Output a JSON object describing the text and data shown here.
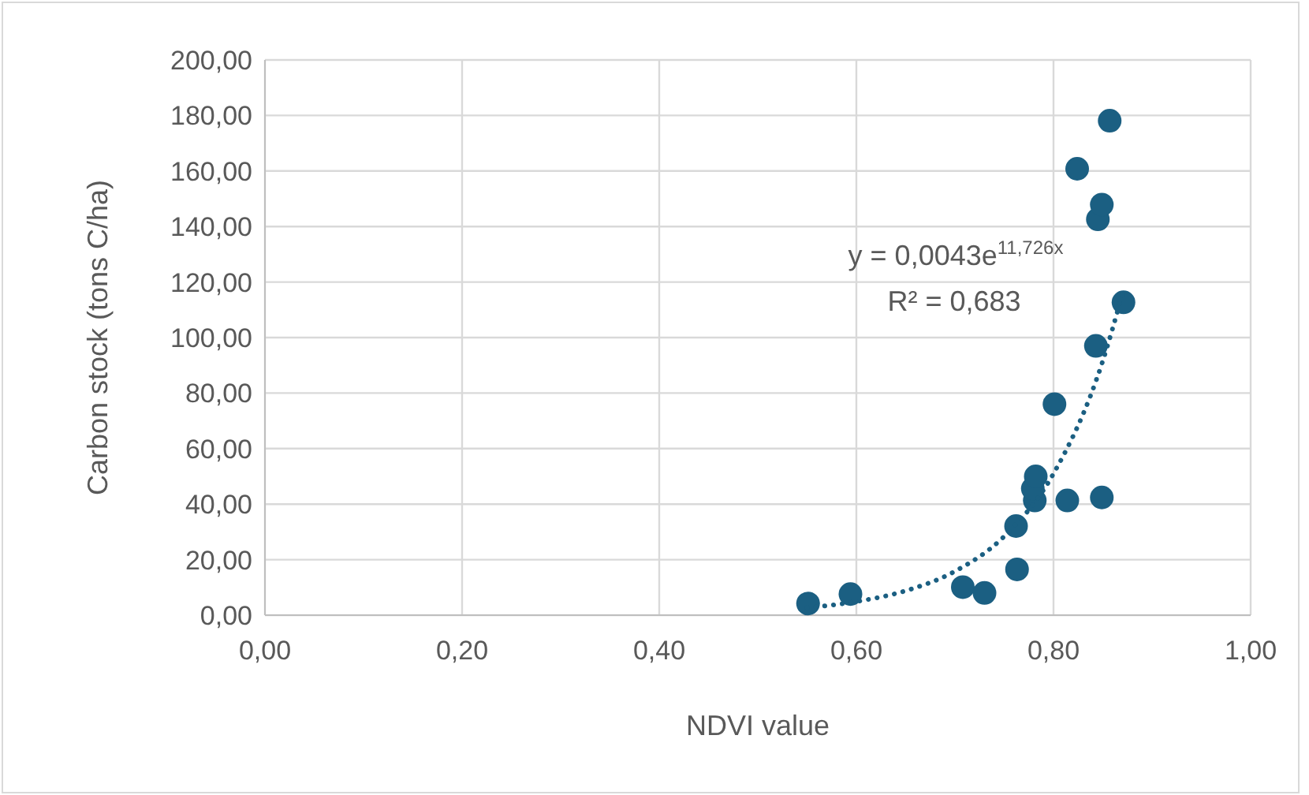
{
  "chart_data": {
    "type": "scatter",
    "xlabel": "NDVI value",
    "ylabel": "Carbon stock (tons C/ha)",
    "xlim": [
      0,
      1
    ],
    "ylim": [
      0,
      200
    ],
    "xticks": [
      {
        "value": 0,
        "label": "0,00"
      },
      {
        "value": 0.2,
        "label": "0,20"
      },
      {
        "value": 0.4,
        "label": "0,40"
      },
      {
        "value": 0.6,
        "label": "0,60"
      },
      {
        "value": 0.8,
        "label": "0,80"
      },
      {
        "value": 1,
        "label": "1,00"
      }
    ],
    "yticks": [
      {
        "value": 0,
        "label": "0,00"
      },
      {
        "value": 20,
        "label": "20,00"
      },
      {
        "value": 40,
        "label": "40,00"
      },
      {
        "value": 60,
        "label": "60,00"
      },
      {
        "value": 80,
        "label": "80,00"
      },
      {
        "value": 100,
        "label": "100,00"
      },
      {
        "value": 120,
        "label": "120,00"
      },
      {
        "value": 140,
        "label": "140,00"
      },
      {
        "value": 160,
        "label": "160,00"
      },
      {
        "value": 180,
        "label": "180,00"
      },
      {
        "value": 200,
        "label": "200,00"
      }
    ],
    "grid": true,
    "series": [
      {
        "color": "#1b5f82",
        "marker": "circle",
        "x": [
          0.551,
          0.594,
          0.708,
          0.73,
          0.763,
          0.762,
          0.781,
          0.779,
          0.782,
          0.801,
          0.814,
          0.849,
          0.843,
          0.871,
          0.845,
          0.849,
          0.824,
          0.857
        ],
        "values": [
          4.2,
          7.6,
          10.1,
          8.0,
          16.5,
          32.1,
          41.3,
          45.6,
          50.0,
          76.0,
          41.3,
          42.4,
          97.0,
          112.7,
          142.6,
          147.9,
          160.8,
          178.1
        ]
      },
      {
        "type": "line",
        "color": "#1b5f82",
        "marker": "none",
        "line_style": "dotted",
        "x": [
          0.55,
          0.6,
          0.65,
          0.7,
          0.75,
          0.8,
          0.85,
          0.87
        ],
        "values": [
          2.7,
          4.9,
          8.8,
          15.8,
          28.4,
          51.0,
          91.6,
          115.9
        ]
      }
    ],
    "annotations": [
      "y = 0,0043e$^{11,726x}$",
      "R² = 0,683"
    ]
  }
}
